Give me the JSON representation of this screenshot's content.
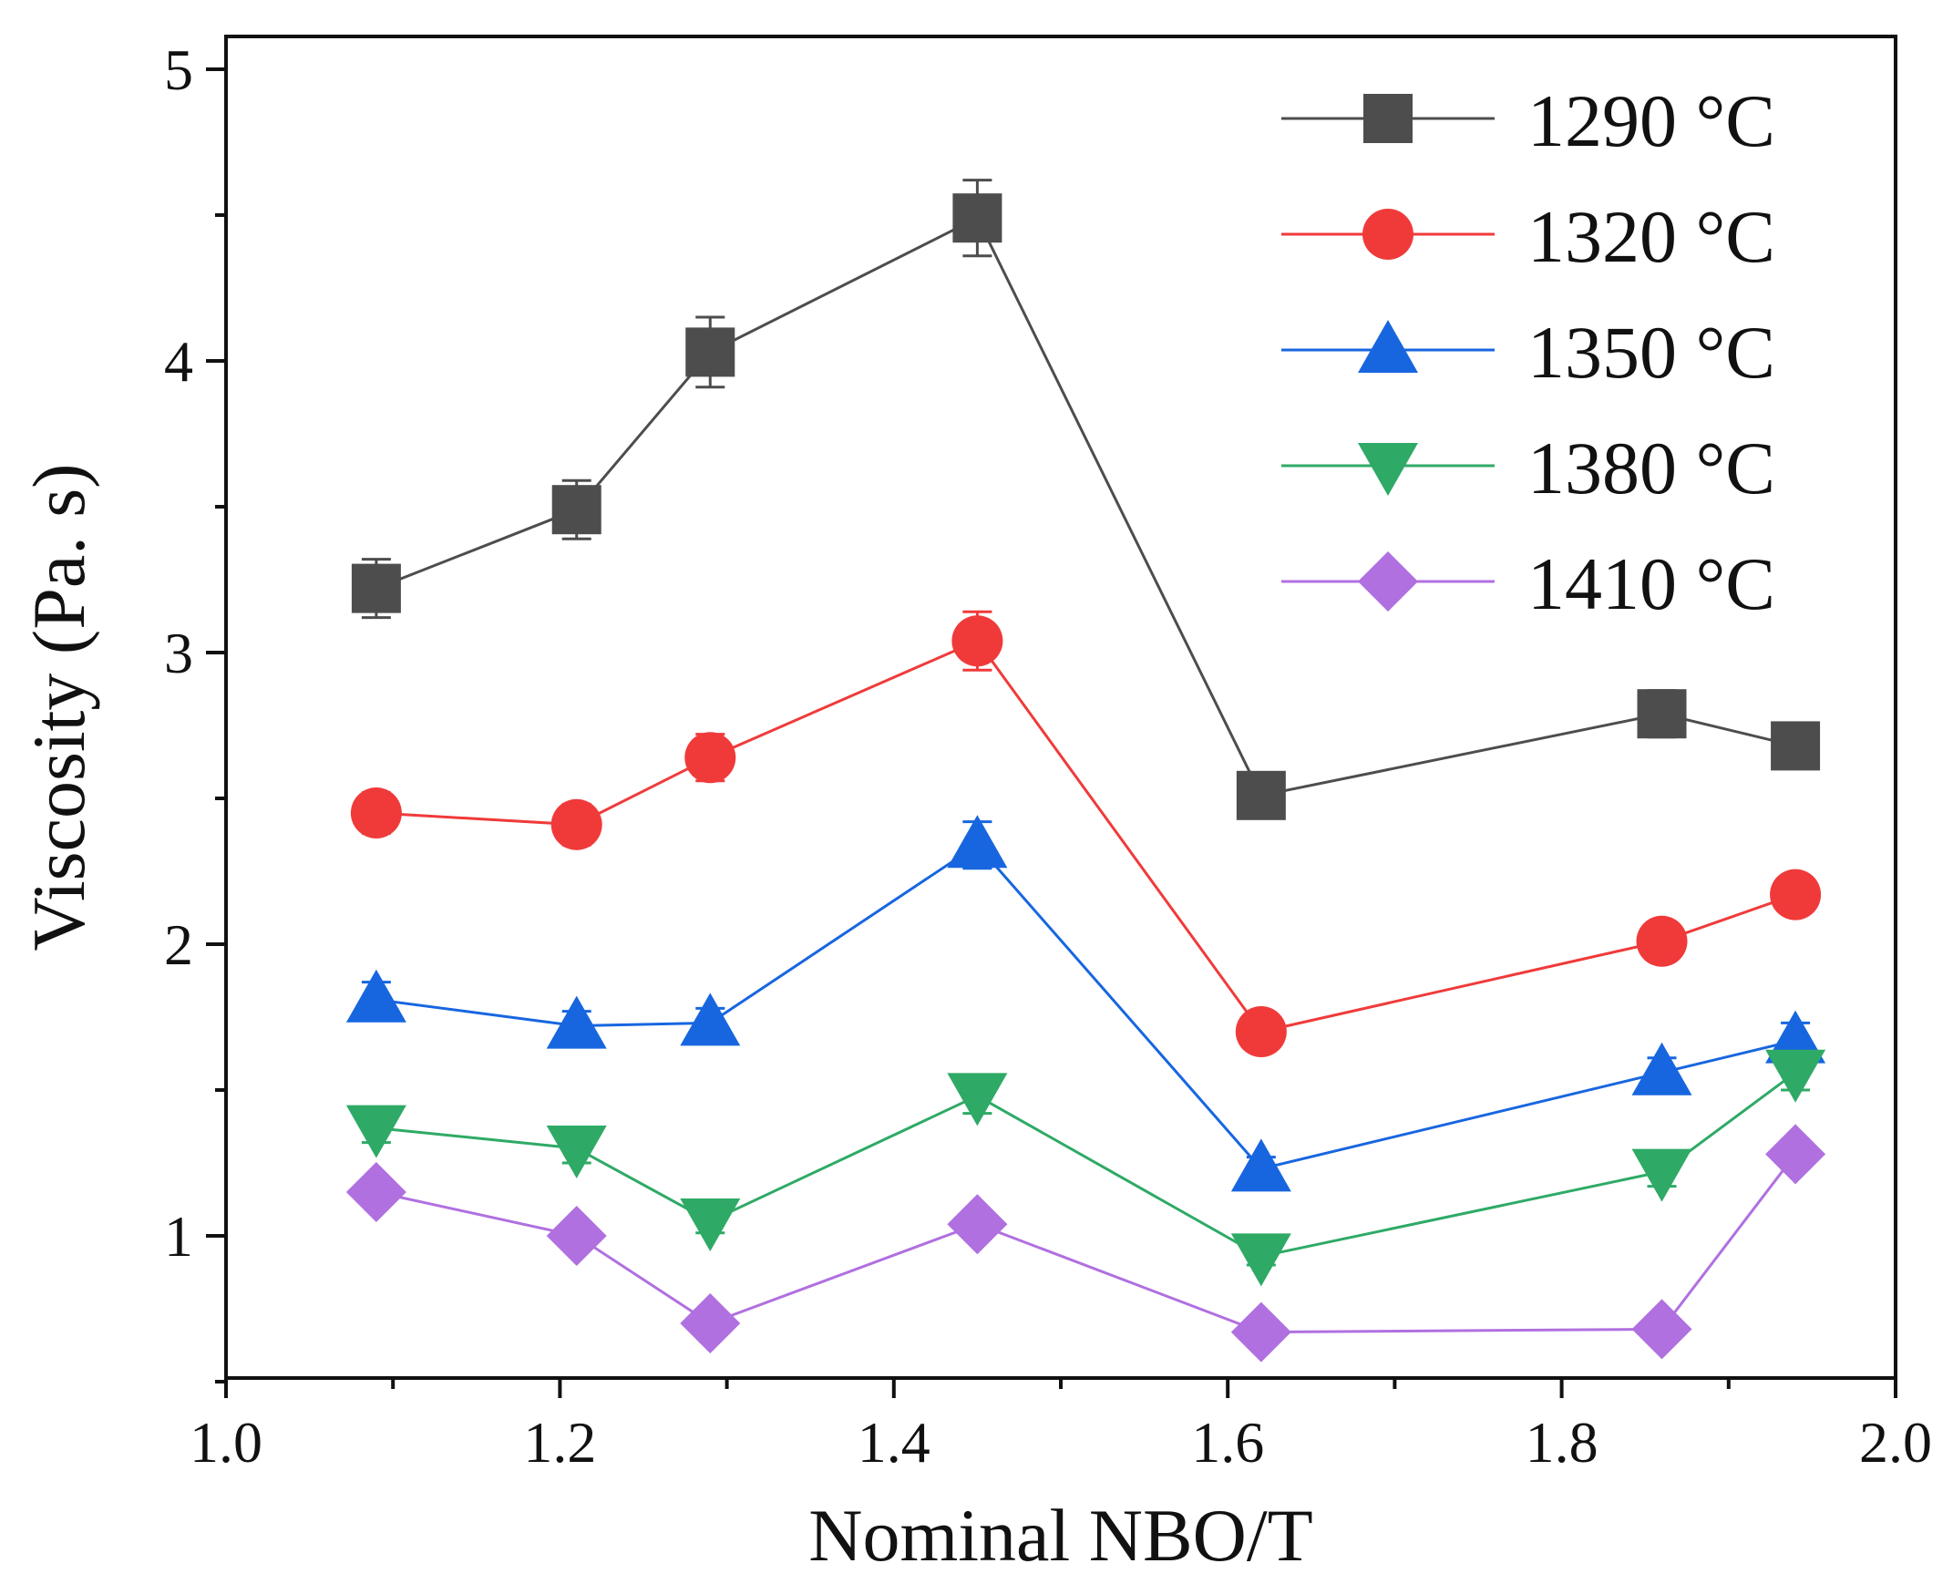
{
  "chart_data": {
    "type": "line",
    "title": "",
    "xlabel": "Nominal NBO/T",
    "ylabel": "Viscosity (Pa. s)",
    "xlim": [
      1.0,
      2.0
    ],
    "ylim": [
      0.5,
      5.0
    ],
    "xticks": [
      1.0,
      1.2,
      1.4,
      1.6,
      1.8,
      2.0
    ],
    "xtick_labels": [
      "1.0",
      "1.2",
      "1.4",
      "1.6",
      "1.8",
      "2.0"
    ],
    "yticks": [
      1,
      2,
      3,
      4,
      5
    ],
    "ytick_labels": [
      "1",
      "2",
      "3",
      "4",
      "5"
    ],
    "legend_position": "top-right",
    "x": [
      1.09,
      1.21,
      1.29,
      1.45,
      1.62,
      1.86,
      1.94
    ],
    "series": [
      {
        "name": "1290 °C",
        "color": "#4d4d4d",
        "marker": "square",
        "values": [
          3.22,
          3.49,
          4.03,
          4.49,
          2.51,
          2.79,
          2.68
        ],
        "errors": [
          0.1,
          0.1,
          0.12,
          0.13,
          0.06,
          0.08,
          0.07
        ]
      },
      {
        "name": "1320 °C",
        "color": "#f03a3a",
        "marker": "circle",
        "values": [
          2.45,
          2.41,
          2.64,
          3.04,
          1.7,
          2.01,
          2.17
        ],
        "errors": [
          0.07,
          0.07,
          0.08,
          0.1,
          0.04,
          0.05,
          0.06
        ]
      },
      {
        "name": "1350 °C",
        "color": "#1766e0",
        "marker": "triangle-up",
        "values": [
          1.81,
          1.72,
          1.73,
          2.34,
          1.23,
          1.56,
          1.67
        ],
        "errors": [
          0.06,
          0.05,
          0.05,
          0.08,
          0.04,
          0.05,
          0.06
        ]
      },
      {
        "name": "1380 °C",
        "color": "#2eaa66",
        "marker": "triangle-down",
        "values": [
          1.37,
          1.3,
          1.05,
          1.48,
          0.93,
          1.22,
          1.56
        ],
        "errors": [
          0.05,
          0.05,
          0.04,
          0.06,
          0.03,
          0.05,
          0.06
        ]
      },
      {
        "name": "1410 °C",
        "color": "#b070e0",
        "marker": "diamond",
        "values": [
          1.15,
          1.0,
          0.7,
          1.04,
          0.67,
          0.68,
          1.28
        ],
        "errors": [
          0.04,
          0.04,
          0.03,
          0.04,
          0.03,
          0.03,
          0.05
        ]
      }
    ]
  }
}
